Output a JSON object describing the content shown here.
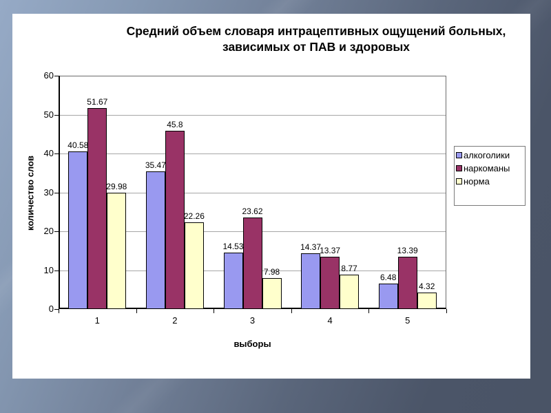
{
  "slide": {
    "kind": "presentation-slide-with-chart"
  },
  "colors": {
    "background_gradient_start": "#96aac6",
    "background_gradient_end": "#4a5466",
    "slide_background": "#ffffff",
    "gridline": "#a6a6a6",
    "axis": "#000000",
    "text": "#000000"
  },
  "chart_data": {
    "type": "bar",
    "title": "Средний объем словаря интрацептивных ощущений больных, зависимых от ПАВ и здоровых",
    "xlabel": "выборы",
    "ylabel": "количество слов",
    "categories": [
      "1",
      "2",
      "3",
      "4",
      "5"
    ],
    "series": [
      {
        "name": "алкоголики",
        "color": "#9999f0",
        "values": [
          40.58,
          35.47,
          14.53,
          14.37,
          6.48
        ]
      },
      {
        "name": "наркоманы",
        "color": "#993366",
        "values": [
          51.67,
          45.8,
          23.62,
          13.37,
          13.39
        ]
      },
      {
        "name": "норма",
        "color": "#ffffcc",
        "values": [
          29.98,
          22.26,
          7.98,
          8.77,
          4.32
        ]
      }
    ],
    "ylim": [
      0,
      60
    ],
    "ytick_step": 10,
    "yticks": [
      0,
      10,
      20,
      30,
      40,
      50,
      60
    ],
    "grid": true,
    "legend_position": "right",
    "data_labels": true
  }
}
